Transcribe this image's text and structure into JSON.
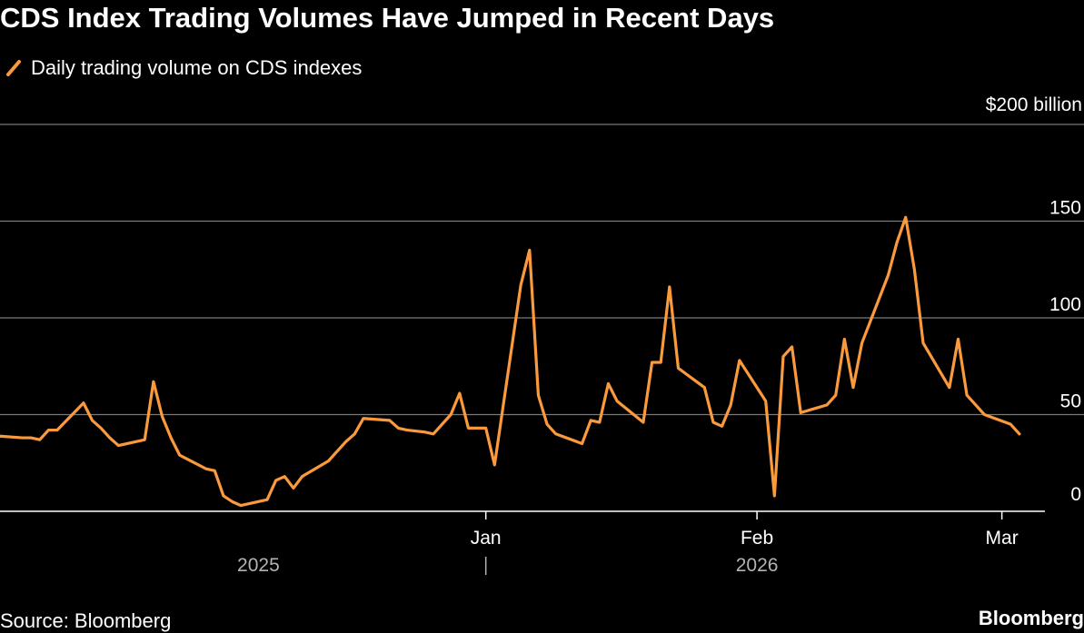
{
  "title": "CDS Index Trading Volumes Have Jumped in Recent Days",
  "legend_label": "Daily trading volume on CDS indexes",
  "source": "Source: Bloomberg",
  "brand": "Bloomberg",
  "colors": {
    "background": "#000000",
    "line": "#fb9a3c",
    "grid": "#7a7a7a",
    "text": "#ffffff",
    "year_text": "#b3b3b3"
  },
  "chart_data": {
    "type": "line",
    "title": "CDS Index Trading Volumes Have Jumped in Recent Days",
    "xlabel": "",
    "ylabel": "",
    "y_unit_label": "$200 billion",
    "ylim": [
      0,
      200
    ],
    "yticks": [
      0,
      50,
      100,
      150,
      200
    ],
    "ytick_labels": [
      "0",
      "50",
      "100",
      "150",
      "$200 billion"
    ],
    "grid": true,
    "legend_position": "top-left",
    "xlim": [
      "2025-11-05",
      "2026-03-08"
    ],
    "x_ticks": [
      {
        "date": "2026-01-01",
        "label": "Jan"
      },
      {
        "date": "2026-02-01",
        "label": "Feb"
      },
      {
        "date": "2026-03-01",
        "label": "Mar"
      }
    ],
    "x_year_labels": [
      {
        "label": "2025",
        "center": "2025-12-06"
      },
      {
        "label": "2026",
        "center": "2026-02-01"
      }
    ],
    "year_separator_date": "2026-01-01",
    "series": [
      {
        "name": "Daily trading volume on CDS indexes",
        "x": [
          "2025-11-04",
          "2025-11-05",
          "2025-11-06",
          "2025-11-09",
          "2025-11-10",
          "2025-11-11",
          "2025-11-12",
          "2025-11-13",
          "2025-11-16",
          "2025-11-17",
          "2025-11-18",
          "2025-11-19",
          "2025-11-20",
          "2025-11-23",
          "2025-11-24",
          "2025-11-25",
          "2025-11-26",
          "2025-11-27",
          "2025-11-30",
          "2025-12-01",
          "2025-12-02",
          "2025-12-03",
          "2025-12-04",
          "2025-12-07",
          "2025-12-08",
          "2025-12-09",
          "2025-12-10",
          "2025-12-11",
          "2025-12-14",
          "2025-12-15",
          "2025-12-16",
          "2025-12-17",
          "2025-12-18",
          "2025-12-21",
          "2025-12-22",
          "2025-12-23",
          "2025-12-25",
          "2025-12-26",
          "2025-12-28",
          "2025-12-29",
          "2025-12-30",
          "2026-01-01",
          "2026-01-02",
          "2026-01-05",
          "2026-01-06",
          "2026-01-07",
          "2026-01-08",
          "2026-01-09",
          "2026-01-12",
          "2026-01-13",
          "2026-01-14",
          "2026-01-15",
          "2026-01-16",
          "2026-01-19",
          "2026-01-20",
          "2026-01-21",
          "2026-01-22",
          "2026-01-23",
          "2026-01-26",
          "2026-01-27",
          "2026-01-28",
          "2026-01-29",
          "2026-01-30",
          "2026-02-02",
          "2026-02-03",
          "2026-02-04",
          "2026-02-05",
          "2026-02-06",
          "2026-02-09",
          "2026-02-10",
          "2026-02-11",
          "2026-02-12",
          "2026-02-13",
          "2026-02-16",
          "2026-02-17",
          "2026-02-18",
          "2026-02-19",
          "2026-02-20",
          "2026-02-23",
          "2026-02-24",
          "2026-02-25",
          "2026-02-26",
          "2026-02-27",
          "2026-03-02",
          "2026-03-03"
        ],
        "values": [
          40,
          35,
          39,
          38,
          38,
          37,
          42,
          42,
          56,
          47,
          43,
          38,
          34,
          37,
          67,
          49,
          38,
          29,
          22,
          21,
          8,
          5,
          3,
          6,
          16,
          18,
          12,
          18,
          26,
          31,
          36,
          40,
          48,
          47,
          43,
          42,
          41,
          40,
          50,
          61,
          43,
          43,
          24,
          117,
          135,
          60,
          45,
          40,
          35,
          47,
          46,
          66,
          57,
          46,
          77,
          77,
          116,
          74,
          64,
          46,
          44,
          55,
          78,
          57,
          8,
          80,
          85,
          51,
          55,
          60,
          89,
          64,
          87,
          122,
          139,
          152,
          125,
          87,
          64,
          89,
          60,
          55,
          50,
          45,
          40
        ],
        "values_note_removed": true
      }
    ]
  }
}
